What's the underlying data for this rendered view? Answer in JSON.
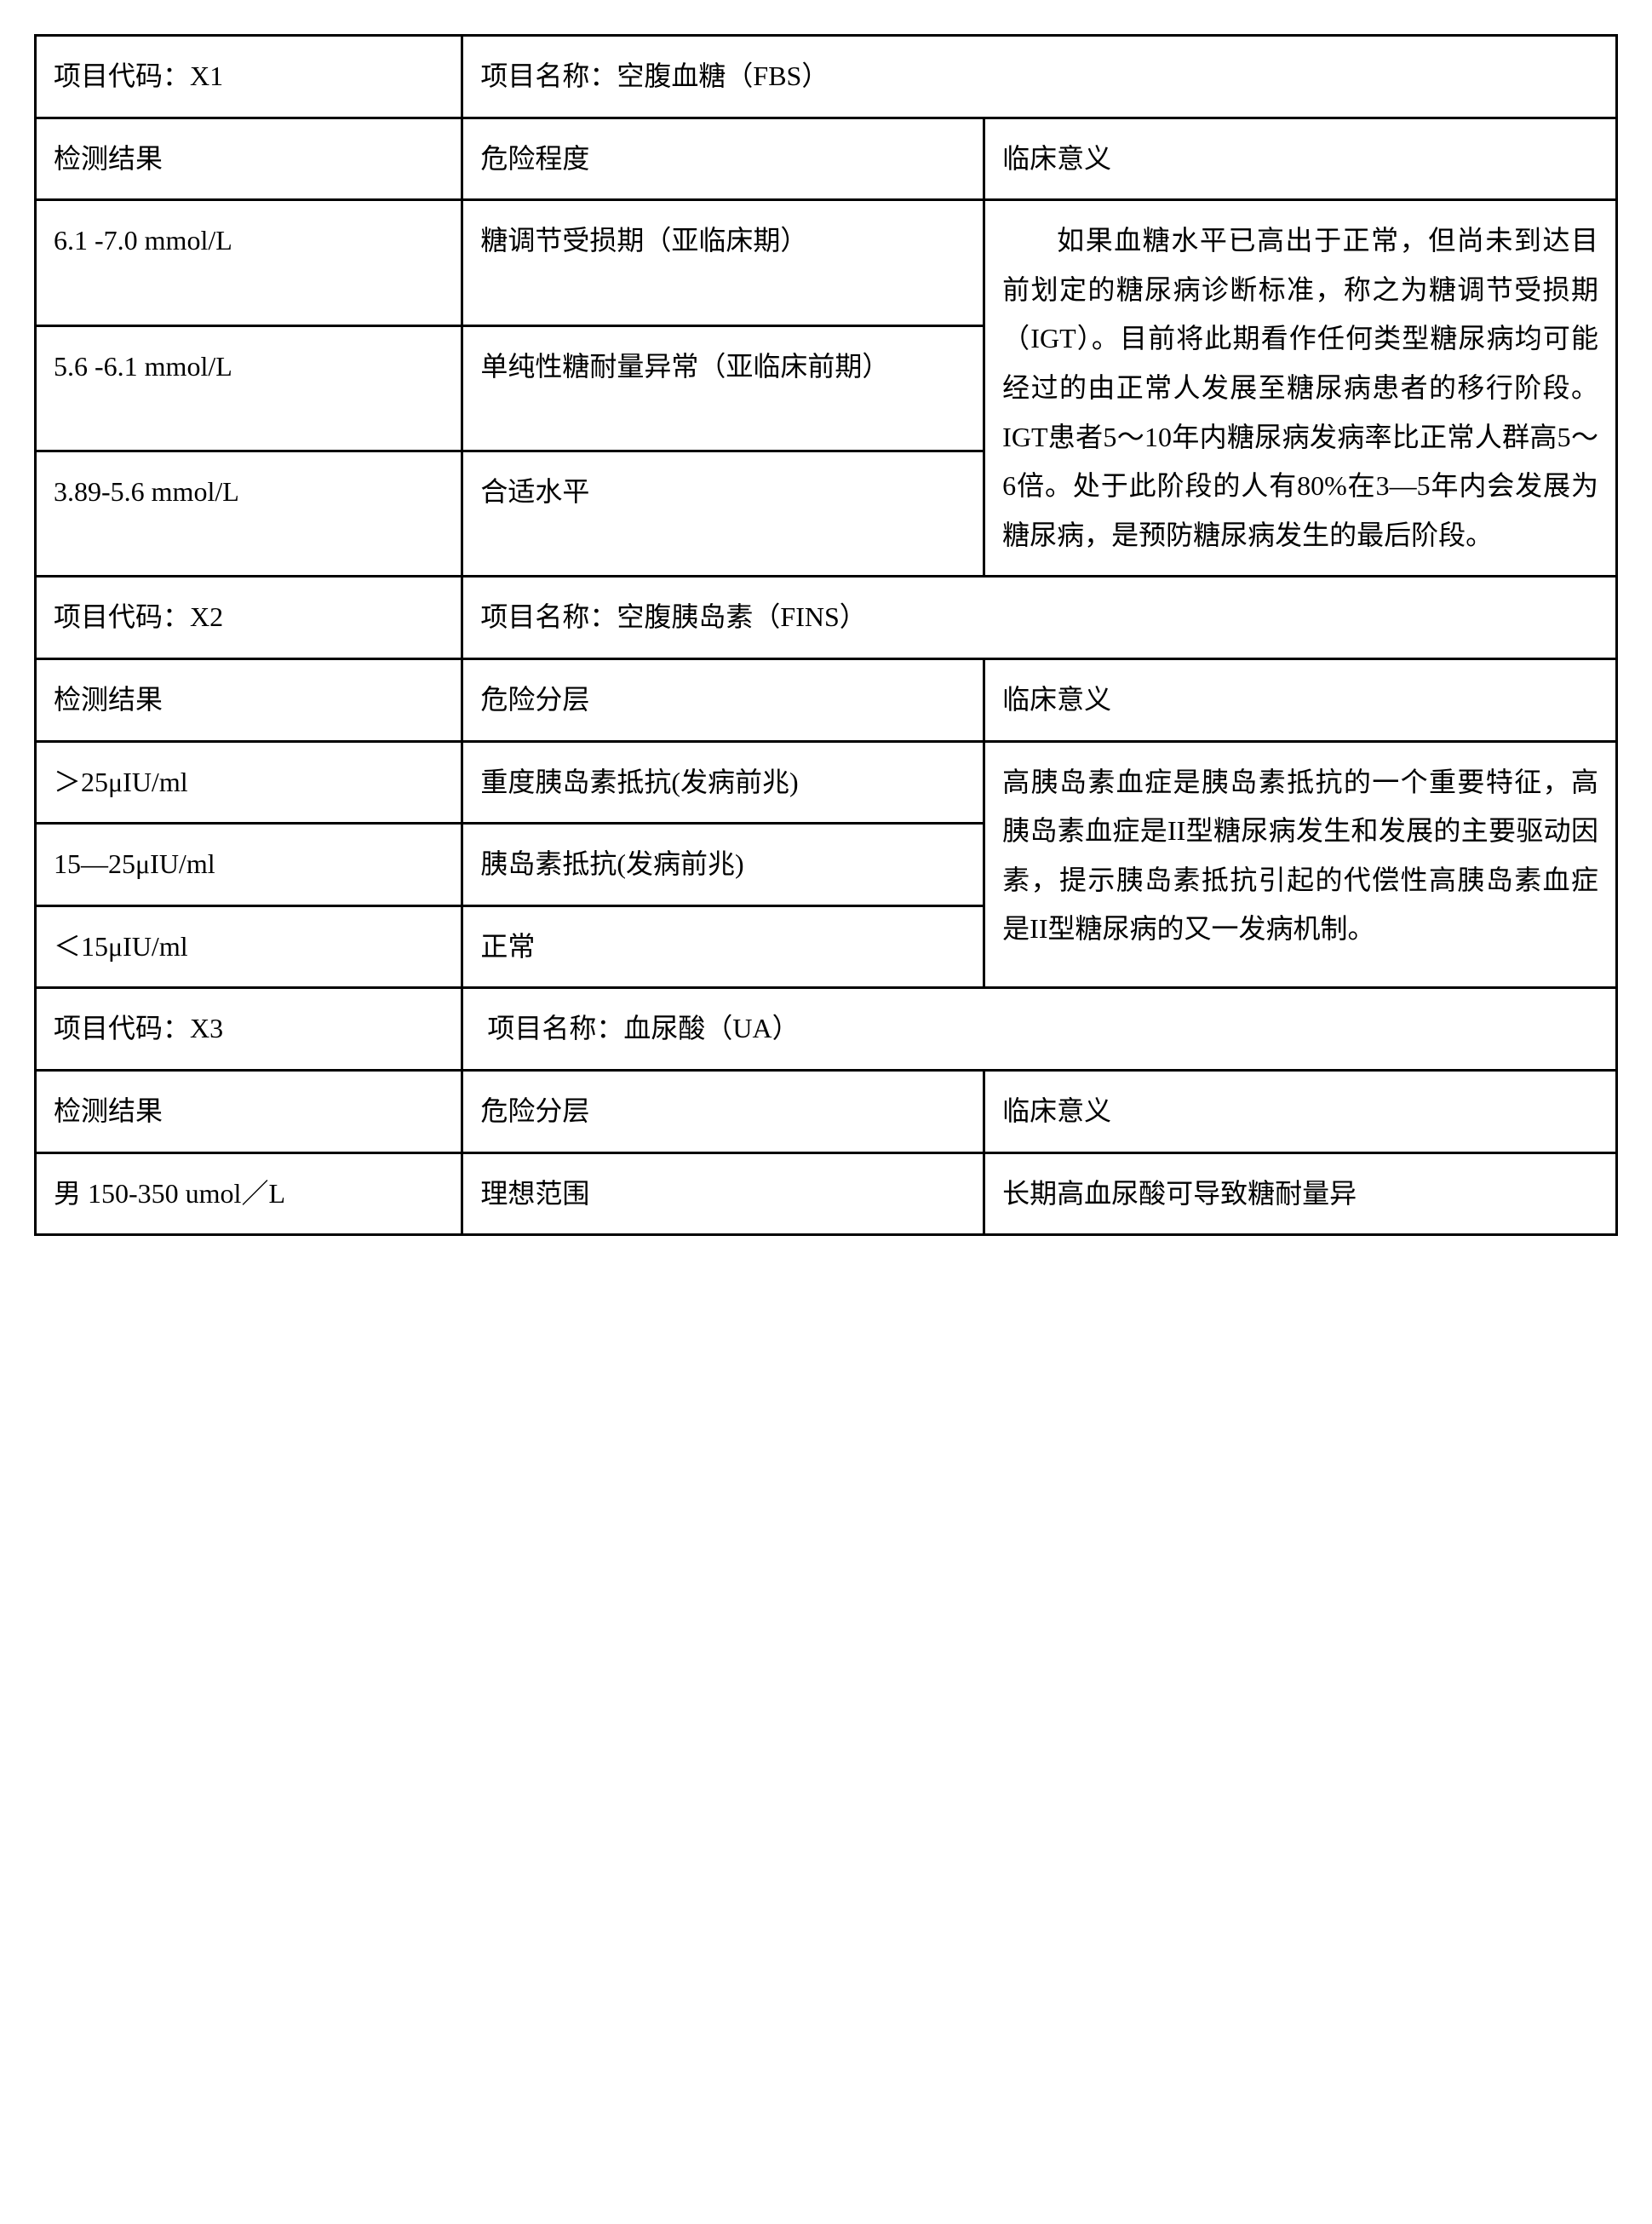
{
  "section1": {
    "code_label": "项目代码：",
    "code_value": "X1",
    "name_label": "项目名称：",
    "name_value": "空腹血糖（FBS）",
    "header_result": "检测结果",
    "header_risk": "危险程度",
    "header_meaning": "临床意义",
    "rows": [
      {
        "result": "6.1 -7.0 mmol/L",
        "risk": "糖调节受损期（亚临床期）"
      },
      {
        "result": "5.6 -6.1 mmol/L",
        "risk": "单纯性糖耐量异常（亚临床前期）"
      },
      {
        "result": "3.89-5.6 mmol/L",
        "risk": "合适水平"
      }
    ],
    "meaning": "如果血糖水平已高出于正常，但尚未到达目前划定的糖尿病诊断标准，称之为糖调节受损期（IGT）。目前将此期看作任何类型糖尿病均可能经过的由正常人发展至糖尿病患者的移行阶段。IGT患者5～10年内糖尿病发病率比正常人群高5～6倍。处于此阶段的人有80%在3—5年内会发展为糖尿病，是预防糖尿病发生的最后阶段。"
  },
  "section2": {
    "code_label": "项目代码：",
    "code_value": "X2",
    "name_label": "项目名称：",
    "name_value": "空腹胰岛素（FINS）",
    "header_result": "检测结果",
    "header_risk": "危险分层",
    "header_meaning": "临床意义",
    "rows": [
      {
        "result": "＞25μIU/ml",
        "risk": "重度胰岛素抵抗(发病前兆)"
      },
      {
        "result": "15—25μIU/ml",
        "risk": "胰岛素抵抗(发病前兆)"
      },
      {
        "result": "＜15μIU/ml",
        "risk": "正常"
      }
    ],
    "meaning": "高胰岛素血症是胰岛素抵抗的一个重要特征，高胰岛素血症是II型糖尿病发生和发展的主要驱动因素，提示胰岛素抵抗引起的代偿性高胰岛素血症是II型糖尿病的又一发病机制。"
  },
  "section3": {
    "code_label": "项目代码：",
    "code_value": "X3",
    "name_label": "项目名称：",
    "name_value": "血尿酸（UA）",
    "header_result": "检测结果",
    "header_risk": "危险分层",
    "header_meaning": "临床意义",
    "rows": [
      {
        "result": "男 150-350 umol／L",
        "risk": "理想范围"
      }
    ],
    "meaning": "长期高血尿酸可导致糖耐量异"
  }
}
